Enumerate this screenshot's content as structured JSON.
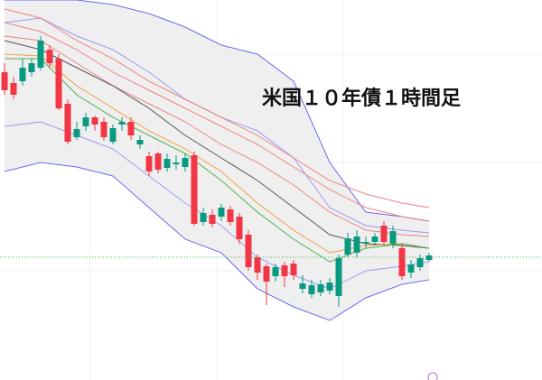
{
  "chart_data": {
    "type": "candlestick",
    "title": "米国１０年債１時間足",
    "x": [
      0,
      1,
      2,
      3,
      4,
      5,
      6,
      7,
      8,
      9,
      10,
      11,
      12,
      13,
      14,
      15,
      16,
      17,
      18,
      19,
      20,
      21,
      22,
      23,
      24,
      25,
      26,
      27,
      28,
      29,
      30,
      31,
      32,
      33,
      34,
      35,
      36,
      37,
      38,
      39,
      40,
      41,
      42,
      43,
      44,
      45,
      46,
      47
    ],
    "open": [
      341,
      329,
      331,
      341,
      346,
      366,
      356,
      306,
      269,
      281,
      291,
      286,
      264,
      283,
      286,
      261,
      248,
      251,
      235,
      239,
      236,
      249,
      175,
      183,
      181,
      189,
      181,
      161,
      136,
      126,
      115,
      127,
      129,
      101,
      95,
      97,
      99,
      93,
      139,
      141,
      151,
      153,
      171,
      151,
      146,
      119,
      125,
      133
    ],
    "high": [
      351,
      336,
      356,
      356,
      381,
      371,
      361,
      311,
      286,
      296,
      293,
      291,
      283,
      291,
      291,
      271,
      253,
      253,
      251,
      249,
      251,
      253,
      191,
      189,
      195,
      193,
      185,
      166,
      139,
      129,
      129,
      131,
      133,
      116,
      111,
      111,
      113,
      139,
      163,
      166,
      159,
      163,
      176,
      171,
      151,
      133,
      139,
      141
    ],
    "low": [
      316,
      311,
      326,
      336,
      343,
      346,
      299,
      261,
      266,
      276,
      276,
      265,
      261,
      276,
      266,
      256,
      226,
      229,
      231,
      233,
      231,
      171,
      171,
      169,
      176,
      171,
      151,
      121,
      111,
      83,
      109,
      103,
      111,
      96,
      91,
      93,
      95,
      81,
      136,
      136,
      147,
      149,
      149,
      146,
      111,
      113,
      121,
      131
    ],
    "close": [
      321,
      316,
      346,
      351,
      376,
      351,
      301,
      264,
      278,
      291,
      283,
      269,
      279,
      286,
      271,
      266,
      231,
      233,
      245,
      241,
      246,
      173,
      185,
      173,
      191,
      175,
      156,
      125,
      119,
      109,
      125,
      115,
      116,
      107,
      105,
      106,
      108,
      135,
      157,
      159,
      153,
      159,
      153,
      165,
      115,
      128,
      135,
      138
    ],
    "up_color": "#089981",
    "down_color": "#f23645",
    "band_fill": "#efefef",
    "xlim": [
      -0.5,
      47.5
    ],
    "ylim": [
      0,
      421
    ],
    "lines": [
      {
        "color": "#6b6bf0",
        "x": [
          0,
          4,
          8,
          12,
          16,
          20,
          24,
          28,
          32,
          36,
          40,
          44,
          47
        ],
        "values": [
          421,
          421,
          421,
          416,
          406,
          391,
          371,
          361,
          331,
          241,
          186,
          181,
          176
        ]
      },
      {
        "color": "#6b6bf0",
        "x": [
          0,
          4,
          8,
          12,
          16,
          20,
          24,
          28,
          32,
          36,
          40,
          44,
          47
        ],
        "values": [
          231,
          241,
          236,
          226,
          191,
          156,
          141,
          101,
          81,
          66,
          91,
          106,
          111
        ]
      },
      {
        "color": "#9a9af5",
        "x": [
          0,
          4,
          8,
          12,
          16,
          20,
          24,
          28,
          32,
          36,
          40,
          44,
          47
        ],
        "values": [
          396,
          401,
          381,
          366,
          341,
          311,
          291,
          276,
          246,
          191,
          171,
          166,
          163
        ]
      },
      {
        "color": "#9a9af5",
        "x": [
          0,
          4,
          8,
          12,
          16,
          20,
          24,
          28,
          32,
          36,
          40,
          44,
          47
        ],
        "values": [
          281,
          286,
          271,
          256,
          226,
          196,
          171,
          136,
          116,
          101,
          121,
          126,
          131
        ]
      },
      {
        "color": "#f08080",
        "x": [
          0,
          4,
          8,
          12,
          16,
          20,
          24,
          28,
          32,
          36,
          40,
          44,
          47
        ],
        "values": [
          411,
          401,
          376,
          356,
          331,
          311,
          291,
          271,
          246,
          221,
          206,
          196,
          191
        ]
      },
      {
        "color": "#f08080",
        "x": [
          0,
          4,
          8,
          12,
          16,
          20,
          24,
          28,
          32,
          36,
          40,
          44,
          47
        ],
        "values": [
          396,
          386,
          366,
          341,
          321,
          301,
          281,
          261,
          236,
          211,
          191,
          181,
          176
        ]
      },
      {
        "color": "#f08080",
        "x": [
          0,
          4,
          8,
          12,
          16,
          20,
          24,
          28,
          32,
          36,
          40,
          44,
          47
        ],
        "values": [
          381,
          376,
          351,
          326,
          306,
          286,
          261,
          241,
          216,
          186,
          166,
          161,
          159
        ]
      },
      {
        "color": "#555555",
        "x": [
          0,
          4,
          8,
          12,
          16,
          20,
          24,
          28,
          32,
          36,
          40,
          44,
          47
        ],
        "values": [
          376,
          366,
          346,
          326,
          301,
          271,
          246,
          221,
          191,
          161,
          151,
          149,
          146
        ]
      },
      {
        "color": "#f0a040",
        "x": [
          0,
          4,
          8,
          12,
          16,
          20,
          24,
          28,
          32,
          36,
          40,
          44,
          47
        ],
        "values": [
          361,
          359,
          326,
          301,
          276,
          256,
          231,
          196,
          166,
          141,
          149,
          151,
          146
        ]
      },
      {
        "color": "#4caf50",
        "x": [
          0,
          4,
          8,
          12,
          16,
          20,
          24,
          28,
          32,
          36,
          40,
          44,
          47
        ],
        "values": [
          356,
          356,
          316,
          291,
          271,
          251,
          221,
          186,
          156,
          131,
          146,
          151,
          146
        ]
      }
    ]
  }
}
